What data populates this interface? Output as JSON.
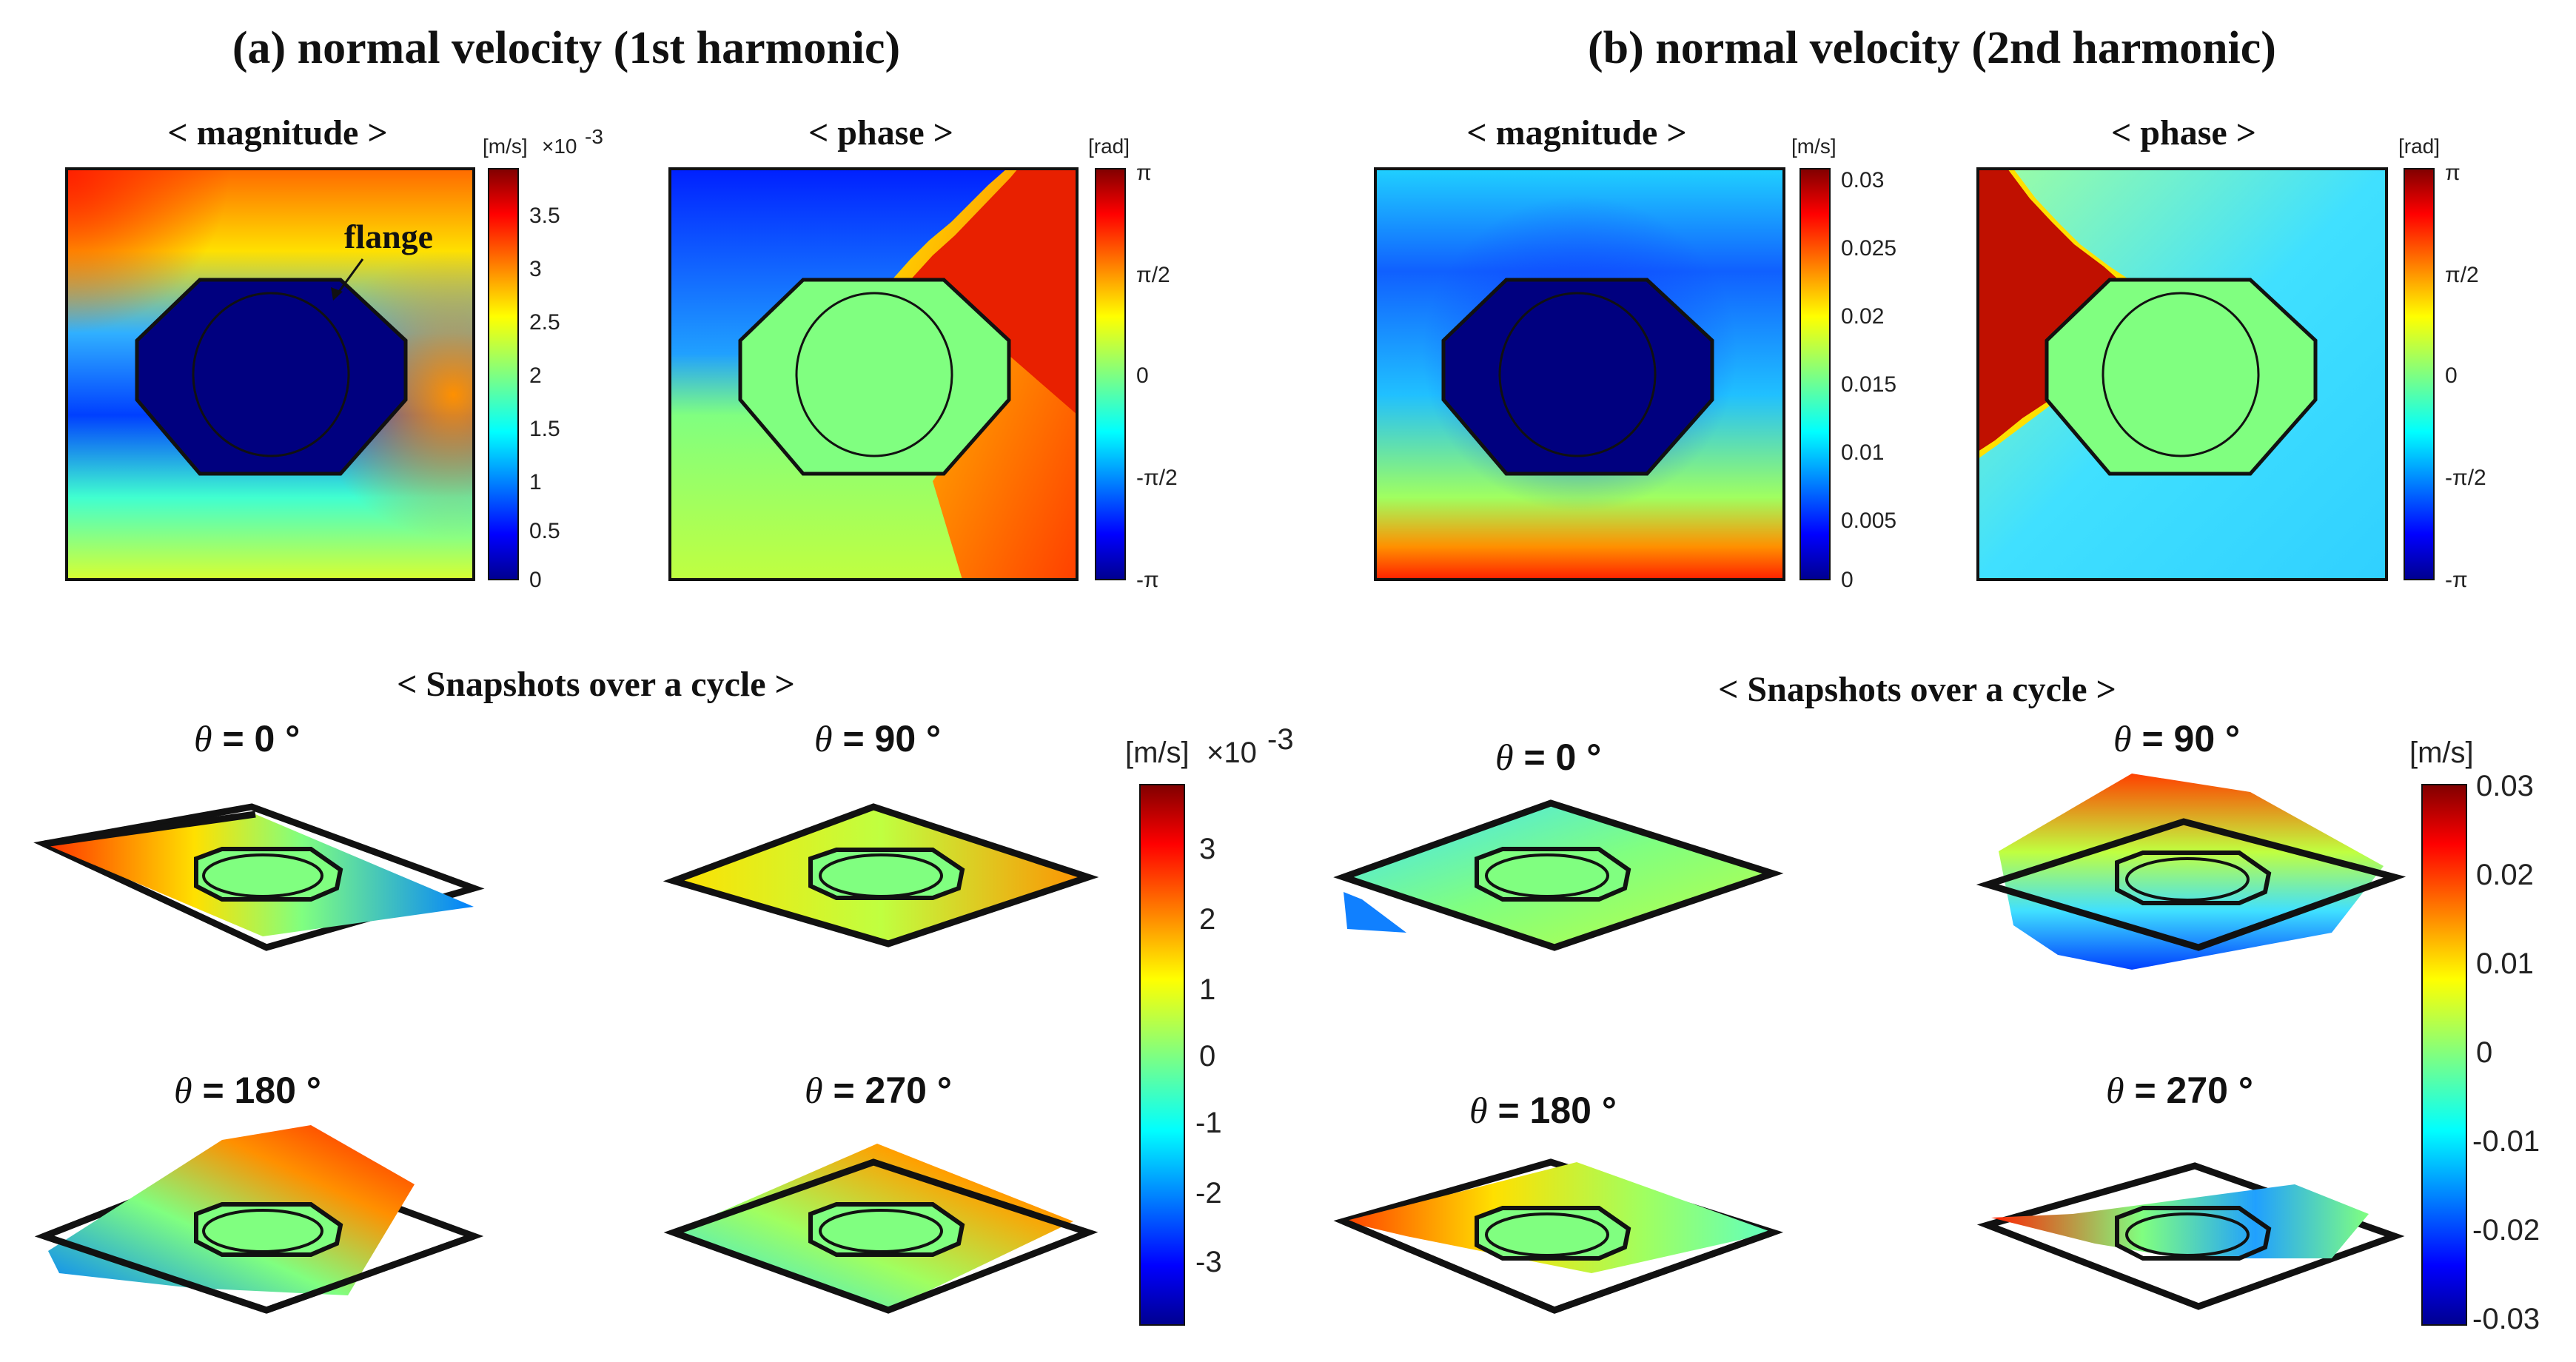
{
  "panel_a": {
    "title": "(a) normal velocity (1st harmonic)",
    "magnitude_label": "< magnitude >",
    "phase_label": "< phase >",
    "snapshots_label": "< Snapshots over a cycle >",
    "annotation": "flange",
    "magnitude_colorbar": {
      "unit": "[m/s]",
      "multiplier": "×10",
      "exponent": "-3",
      "ticks": [
        "3.5",
        "3",
        "2.5",
        "2",
        "1.5",
        "1",
        "0.5",
        "0"
      ]
    },
    "phase_colorbar": {
      "unit": "[rad]",
      "ticks": [
        "π",
        "π/2",
        "0",
        "-π/2",
        "-π"
      ]
    },
    "snapshot_colorbar": {
      "unit": "[m/s]",
      "multiplier": "×10",
      "exponent": "-3",
      "ticks": [
        "3",
        "2",
        "1",
        "0",
        "-1",
        "-2",
        "-3"
      ]
    },
    "snapshots": [
      {
        "sym": "θ",
        "label": " = 0 °"
      },
      {
        "sym": "θ",
        "label": " = 90 °"
      },
      {
        "sym": "θ",
        "label": " = 180 °"
      },
      {
        "sym": "θ",
        "label": " = 270 °"
      }
    ]
  },
  "panel_b": {
    "title": "(b) normal velocity (2nd harmonic)",
    "magnitude_label": "< magnitude >",
    "phase_label": "< phase >",
    "snapshots_label": "< Snapshots over a cycle >",
    "magnitude_colorbar": {
      "unit": "[m/s]",
      "ticks": [
        "0.03",
        "0.025",
        "0.02",
        "0.015",
        "0.01",
        "0.005",
        "0"
      ]
    },
    "phase_colorbar": {
      "unit": "[rad]",
      "ticks": [
        "π",
        "π/2",
        "0",
        "-π/2",
        "-π"
      ]
    },
    "snapshot_colorbar": {
      "unit": "[m/s]",
      "ticks": [
        "0.03",
        "0.02",
        "0.01",
        "0",
        "-0.01",
        "-0.02",
        "-0.03"
      ]
    },
    "snapshots": [
      {
        "sym": "θ",
        "label": " = 0 °"
      },
      {
        "sym": "θ",
        "label": " = 90 °"
      },
      {
        "sym": "θ",
        "label": " = 180 °"
      },
      {
        "sym": "θ",
        "label": " = 270 °"
      }
    ]
  },
  "colors": {
    "jet": [
      "#00008f",
      "#0000ff",
      "#0080ff",
      "#00ffff",
      "#80ff80",
      "#ffff00",
      "#ff8000",
      "#ff0000",
      "#800000"
    ],
    "outline": "#111111",
    "interior_phase": "#80ff80",
    "interior_magnitude": "#00007f"
  }
}
